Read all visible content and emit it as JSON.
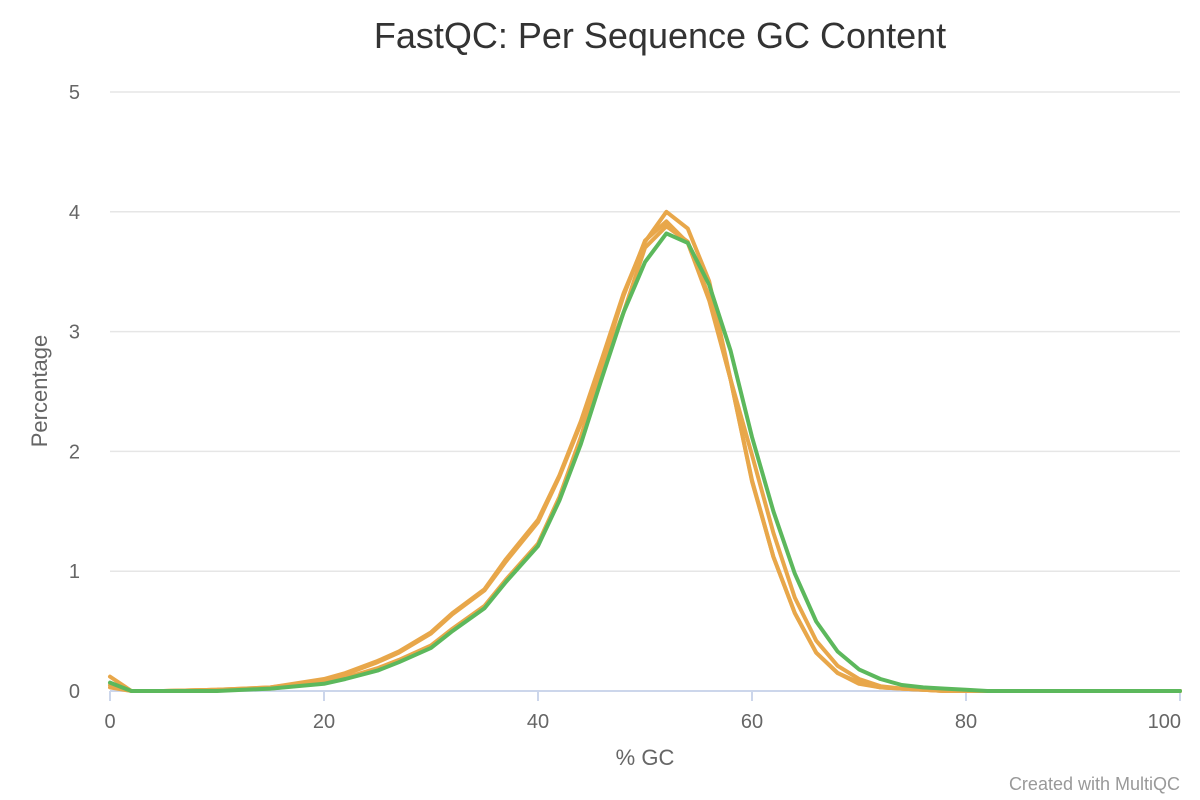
{
  "chart_data": {
    "type": "line",
    "title": "FastQC: Per Sequence GC Content",
    "xlabel": "% GC",
    "ylabel": "Percentage",
    "xlim": [
      0,
      100
    ],
    "ylim": [
      0,
      5
    ],
    "x_ticks": [
      "0",
      "20",
      "40",
      "60",
      "80",
      "100"
    ],
    "y_ticks": [
      "0",
      "1",
      "2",
      "3",
      "4",
      "5"
    ],
    "grid": true,
    "credit": "Created with MultiQC",
    "series": [
      {
        "color": "#e8a74a",
        "x": [
          0,
          2,
          5,
          10,
          15,
          20,
          22,
          25,
          27,
          30,
          32,
          35,
          37,
          40,
          42,
          44,
          46,
          48,
          50,
          52,
          54,
          56,
          58,
          60,
          62,
          64,
          66,
          68,
          70,
          72,
          74,
          76,
          78,
          80,
          82,
          85,
          90,
          95,
          100
        ],
        "values": [
          0.12,
          0.0,
          0.0,
          0.01,
          0.03,
          0.1,
          0.15,
          0.25,
          0.33,
          0.49,
          0.65,
          0.85,
          1.1,
          1.43,
          1.8,
          2.25,
          2.78,
          3.32,
          3.75,
          4.0,
          3.86,
          3.42,
          2.6,
          1.75,
          1.12,
          0.65,
          0.32,
          0.15,
          0.06,
          0.03,
          0.02,
          0.01,
          0.0,
          0.0,
          0.0,
          0.0,
          0.0,
          0.0,
          0.0
        ]
      },
      {
        "color": "#e8a74a",
        "x": [
          0,
          2,
          5,
          10,
          15,
          20,
          22,
          25,
          27,
          30,
          32,
          35,
          37,
          40,
          42,
          44,
          46,
          48,
          50,
          52,
          54,
          56,
          58,
          60,
          62,
          64,
          66,
          68,
          70,
          72,
          74,
          76,
          78,
          80,
          82,
          85,
          90,
          95,
          100
        ],
        "values": [
          0.03,
          0.0,
          0.0,
          0.01,
          0.03,
          0.09,
          0.14,
          0.24,
          0.32,
          0.48,
          0.64,
          0.84,
          1.08,
          1.41,
          1.79,
          2.23,
          2.74,
          3.3,
          3.76,
          3.92,
          3.74,
          3.26,
          2.6,
          1.76,
          1.12,
          0.65,
          0.32,
          0.15,
          0.07,
          0.03,
          0.02,
          0.01,
          0.0,
          0.0,
          0.0,
          0.0,
          0.0,
          0.0,
          0.0
        ]
      },
      {
        "color": "#e8a74a",
        "x": [
          0,
          2,
          5,
          10,
          15,
          20,
          22,
          25,
          27,
          30,
          32,
          35,
          37,
          40,
          42,
          44,
          46,
          48,
          50,
          52,
          54,
          56,
          58,
          60,
          62,
          64,
          66,
          68,
          70,
          72,
          74,
          76,
          78,
          80,
          82,
          85,
          90,
          95,
          100
        ],
        "values": [
          0.05,
          0.0,
          0.0,
          0.01,
          0.02,
          0.07,
          0.11,
          0.19,
          0.26,
          0.38,
          0.52,
          0.71,
          0.93,
          1.23,
          1.62,
          2.12,
          2.7,
          3.16,
          3.7,
          3.88,
          3.75,
          3.29,
          2.6,
          1.97,
          1.32,
          0.78,
          0.42,
          0.21,
          0.1,
          0.04,
          0.02,
          0.01,
          0.0,
          0.0,
          0.0,
          0.0,
          0.0,
          0.0,
          0.0
        ]
      },
      {
        "color": "#5cb85c",
        "x": [
          0,
          2,
          5,
          10,
          15,
          20,
          22,
          25,
          27,
          30,
          32,
          35,
          37,
          40,
          42,
          44,
          46,
          48,
          50,
          52,
          54,
          56,
          58,
          60,
          62,
          64,
          66,
          68,
          70,
          72,
          74,
          76,
          78,
          80,
          82,
          85,
          90,
          95,
          100
        ],
        "values": [
          0.07,
          0.0,
          0.0,
          0.0,
          0.02,
          0.06,
          0.1,
          0.17,
          0.24,
          0.36,
          0.5,
          0.69,
          0.91,
          1.21,
          1.59,
          2.06,
          2.62,
          3.16,
          3.58,
          3.82,
          3.74,
          3.39,
          2.84,
          2.12,
          1.5,
          0.98,
          0.58,
          0.33,
          0.18,
          0.1,
          0.05,
          0.03,
          0.02,
          0.01,
          0.0,
          0.0,
          0.0,
          0.0,
          0.0
        ]
      }
    ]
  }
}
